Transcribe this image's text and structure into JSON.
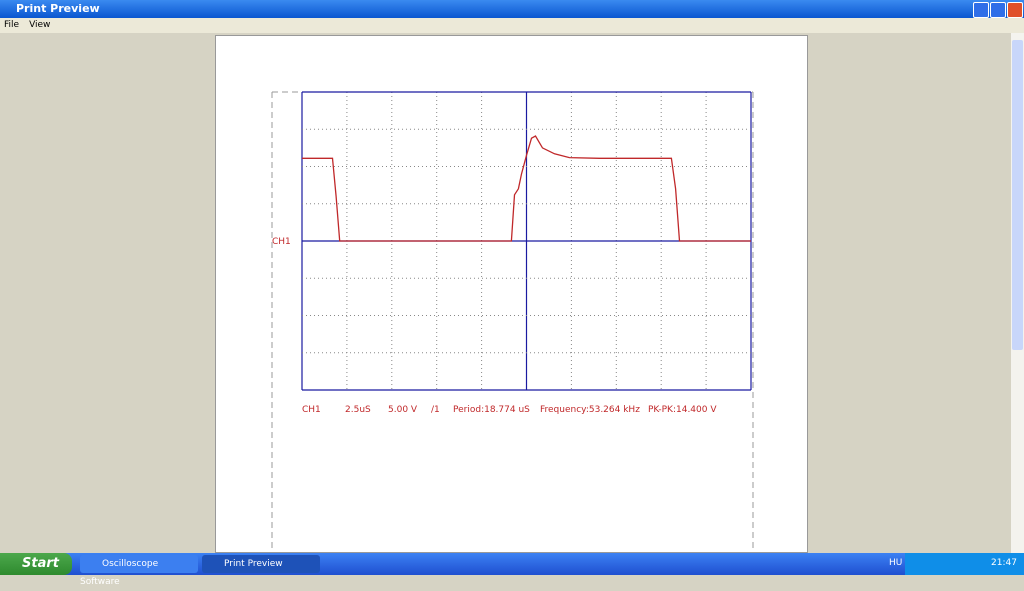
{
  "window": {
    "title": "Print Preview"
  },
  "menu": [
    "File",
    "View"
  ],
  "chart_data": {
    "type": "line",
    "x": [
      -12.5,
      -10.8,
      -10.6,
      -10.4,
      -10.1,
      -0.84,
      -0.67,
      -0.45,
      -0.28,
      0,
      0.28,
      0.5,
      0.89,
      1.56,
      2.39,
      4.06,
      8.07,
      8.3,
      8.52,
      12.5
    ],
    "series": [
      {
        "name": "CH1",
        "color": "#c0282a",
        "values": [
          11.1,
          11.1,
          6,
          0,
          0,
          0,
          6.2,
          7,
          9,
          11.5,
          13.8,
          14.1,
          12.5,
          11.7,
          11.2,
          11.1,
          11.1,
          7,
          0,
          0
        ]
      }
    ],
    "xlim": [
      -12.5,
      12.5
    ],
    "ylim": [
      -20,
      20
    ],
    "xticks": [
      -12.5,
      -10,
      -7.5,
      -5,
      -2.5,
      0,
      2.5,
      5,
      7.5,
      10,
      12.5
    ],
    "yticks": [
      -20,
      -15,
      -10,
      -5,
      0,
      5,
      10,
      15,
      20
    ],
    "grid": true,
    "grid_color": "#1a1aa0",
    "info": [
      "CH1",
      "2.5uS",
      "5.00 V",
      "/1",
      "Period:18.774 uS",
      "Frequency:53.264 kHz",
      "PK-PK:14.400 V"
    ]
  },
  "taskbar": {
    "start": "Start",
    "tasks": [
      "Oscilloscope Software",
      "Print Preview"
    ],
    "language": "HU",
    "clock": "21:47"
  }
}
